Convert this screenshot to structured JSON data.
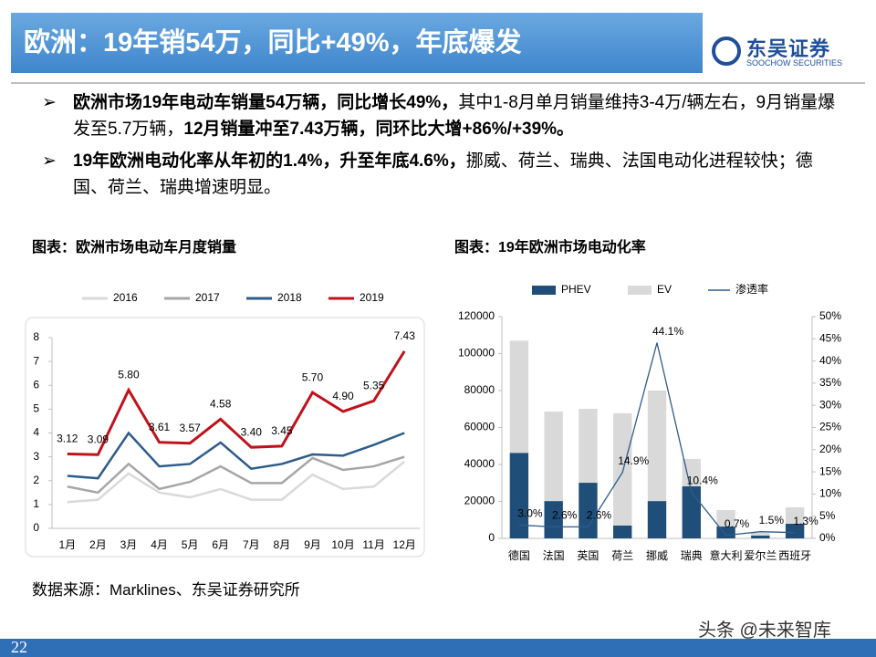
{
  "header": {
    "title": "欧洲：19年销54万，同比+49%，年底爆发",
    "logo": "东吴证券",
    "logo_sub": "SOOCHOW SECURITIES"
  },
  "bullets": [
    {
      "segments": [
        {
          "text": "欧洲市场19年电动车销量54万辆，同比增长49%，",
          "bold": true
        },
        {
          "text": "其中1-8月单月销量维持3-4万/辆左右，9月销量爆发至5.7万辆，",
          "bold": false
        },
        {
          "text": "12月销量冲至7.43万辆，同环比大增+86%/+39%。",
          "bold": true
        }
      ]
    },
    {
      "segments": [
        {
          "text": "19年欧洲电动化率从年初的1.4%，升至年底4.6%，",
          "bold": true
        },
        {
          "text": "挪威、荷兰、瑞典、法国电动化进程较快；德国、荷兰、瑞典增速明显。",
          "bold": false
        }
      ]
    }
  ],
  "source": "数据来源：Marklines、东吴证券研究所",
  "page_number": "22",
  "watermark": "头条 @未来智库",
  "chart_data": [
    {
      "type": "line",
      "title": "图表：欧洲市场电动车月度销量",
      "categories": [
        "1月",
        "2月",
        "3月",
        "4月",
        "5月",
        "6月",
        "7月",
        "8月",
        "9月",
        "10月",
        "11月",
        "12月"
      ],
      "series": [
        {
          "name": "2016",
          "color": "#d9d9d9",
          "values": [
            1.1,
            1.2,
            2.3,
            1.5,
            1.3,
            1.65,
            1.2,
            1.2,
            2.25,
            1.65,
            1.75,
            2.8
          ]
        },
        {
          "name": "2017",
          "color": "#a6a6a6",
          "values": [
            1.75,
            1.5,
            2.7,
            1.65,
            1.95,
            2.6,
            1.9,
            1.9,
            2.95,
            2.45,
            2.6,
            3.0
          ]
        },
        {
          "name": "2018",
          "color": "#2e5c8a",
          "values": [
            2.2,
            2.1,
            4.0,
            2.6,
            2.7,
            3.6,
            2.5,
            2.7,
            3.1,
            3.05,
            3.5,
            4.0
          ]
        },
        {
          "name": "2019",
          "color": "#c0121b",
          "values": [
            3.12,
            3.09,
            5.8,
            3.61,
            3.57,
            4.58,
            3.4,
            3.45,
            5.7,
            4.9,
            5.35,
            7.43
          ],
          "value_labels": [
            "3.12",
            "3.09",
            "5.80",
            "3.61",
            "3.57",
            "4.58",
            "3.40",
            "3.45",
            "5.70",
            "4.90",
            "5.35",
            "7.43"
          ]
        }
      ],
      "ylim": [
        0,
        8
      ],
      "yticks": [
        0,
        1,
        2,
        3,
        4,
        5,
        6,
        7,
        8
      ],
      "grid": false,
      "legend": "top"
    },
    {
      "type": "bar",
      "stacked": true,
      "title": "图表：19年欧洲市场电动化率",
      "categories": [
        "德国",
        "法国",
        "英国",
        "荷兰",
        "挪威",
        "瑞典",
        "意大利",
        "爱尔兰",
        "西班牙"
      ],
      "series": [
        {
          "name": "PHEV",
          "color": "#1f4e79",
          "values": [
            46300,
            20200,
            30100,
            7000,
            20200,
            28200,
            6400,
            1500,
            7900
          ]
        },
        {
          "name": "EV",
          "color": "#d9d9d9",
          "values": [
            60700,
            48400,
            40000,
            60700,
            59800,
            14800,
            8900,
            1500,
            8900
          ]
        },
        {
          "name": "渗透率",
          "color": "#2e5c8a",
          "axis": "y2",
          "values": [
            3.0,
            2.6,
            2.6,
            14.9,
            44.1,
            10.4,
            0.7,
            1.5,
            1.3
          ],
          "value_labels": [
            "3.0%",
            "2.6%",
            "2.6%",
            "14.9%",
            "44.1%",
            "10.4%",
            "0.7%",
            "1.5%",
            "1.3%"
          ]
        }
      ],
      "ylim": [
        0,
        120000
      ],
      "yticks": [
        0,
        20000,
        40000,
        60000,
        80000,
        100000,
        120000
      ],
      "y2lim": [
        0,
        50
      ],
      "y2ticks": [
        {
          "value": 0,
          "label": "0%"
        },
        {
          "value": 5,
          "label": "5%"
        },
        {
          "value": 10,
          "label": "10%"
        },
        {
          "value": 15,
          "label": "15%"
        },
        {
          "value": 20,
          "label": "20%"
        },
        {
          "value": 25,
          "label": "25%"
        },
        {
          "value": 30,
          "label": "30%"
        },
        {
          "value": 35,
          "label": "35%"
        },
        {
          "value": 40,
          "label": "40%"
        },
        {
          "value": 45,
          "label": "45%"
        },
        {
          "value": 50,
          "label": "50%"
        }
      ],
      "grid": false,
      "legend": "top"
    }
  ]
}
